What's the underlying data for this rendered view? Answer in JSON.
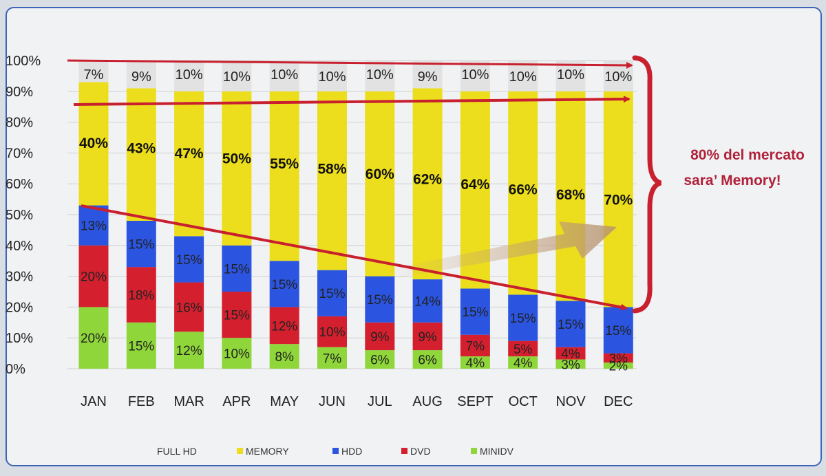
{
  "chart_data": {
    "type": "bar",
    "stacked": true,
    "categories": [
      "JAN",
      "FEB",
      "MAR",
      "APR",
      "MAY",
      "JUN",
      "JUL",
      "AUG",
      "SEPT",
      "OCT",
      "NOV",
      "DEC"
    ],
    "y_ticks": [
      "0%",
      "10%",
      "20%",
      "30%",
      "40%",
      "50%",
      "60%",
      "70%",
      "80%",
      "90%",
      "100%"
    ],
    "ylim": [
      0,
      100
    ],
    "grid": true,
    "legend_position": "bottom",
    "series": [
      {
        "name": "MINIDV",
        "color": "#8fd63a",
        "values": [
          20,
          15,
          12,
          10,
          8,
          7,
          6,
          6,
          4,
          4,
          3,
          2
        ]
      },
      {
        "name": "DVD",
        "color": "#d4202e",
        "values": [
          20,
          18,
          16,
          15,
          12,
          10,
          9,
          9,
          7,
          5,
          4,
          3
        ]
      },
      {
        "name": "HDD",
        "color": "#2b55e0",
        "values": [
          13,
          15,
          15,
          15,
          15,
          15,
          15,
          14,
          15,
          15,
          15,
          15
        ]
      },
      {
        "name": "MEMORY",
        "color": "#ecde1c",
        "values": [
          40,
          43,
          47,
          50,
          55,
          58,
          60,
          62,
          64,
          66,
          68,
          70
        ]
      },
      {
        "name": "FULL HD",
        "color": "#e2e2e2",
        "values": [
          7,
          9,
          10,
          10,
          10,
          10,
          10,
          9,
          10,
          10,
          10,
          10
        ]
      }
    ],
    "annotation": [
      "80% del mercato",
      "sara’ Memory!"
    ]
  }
}
